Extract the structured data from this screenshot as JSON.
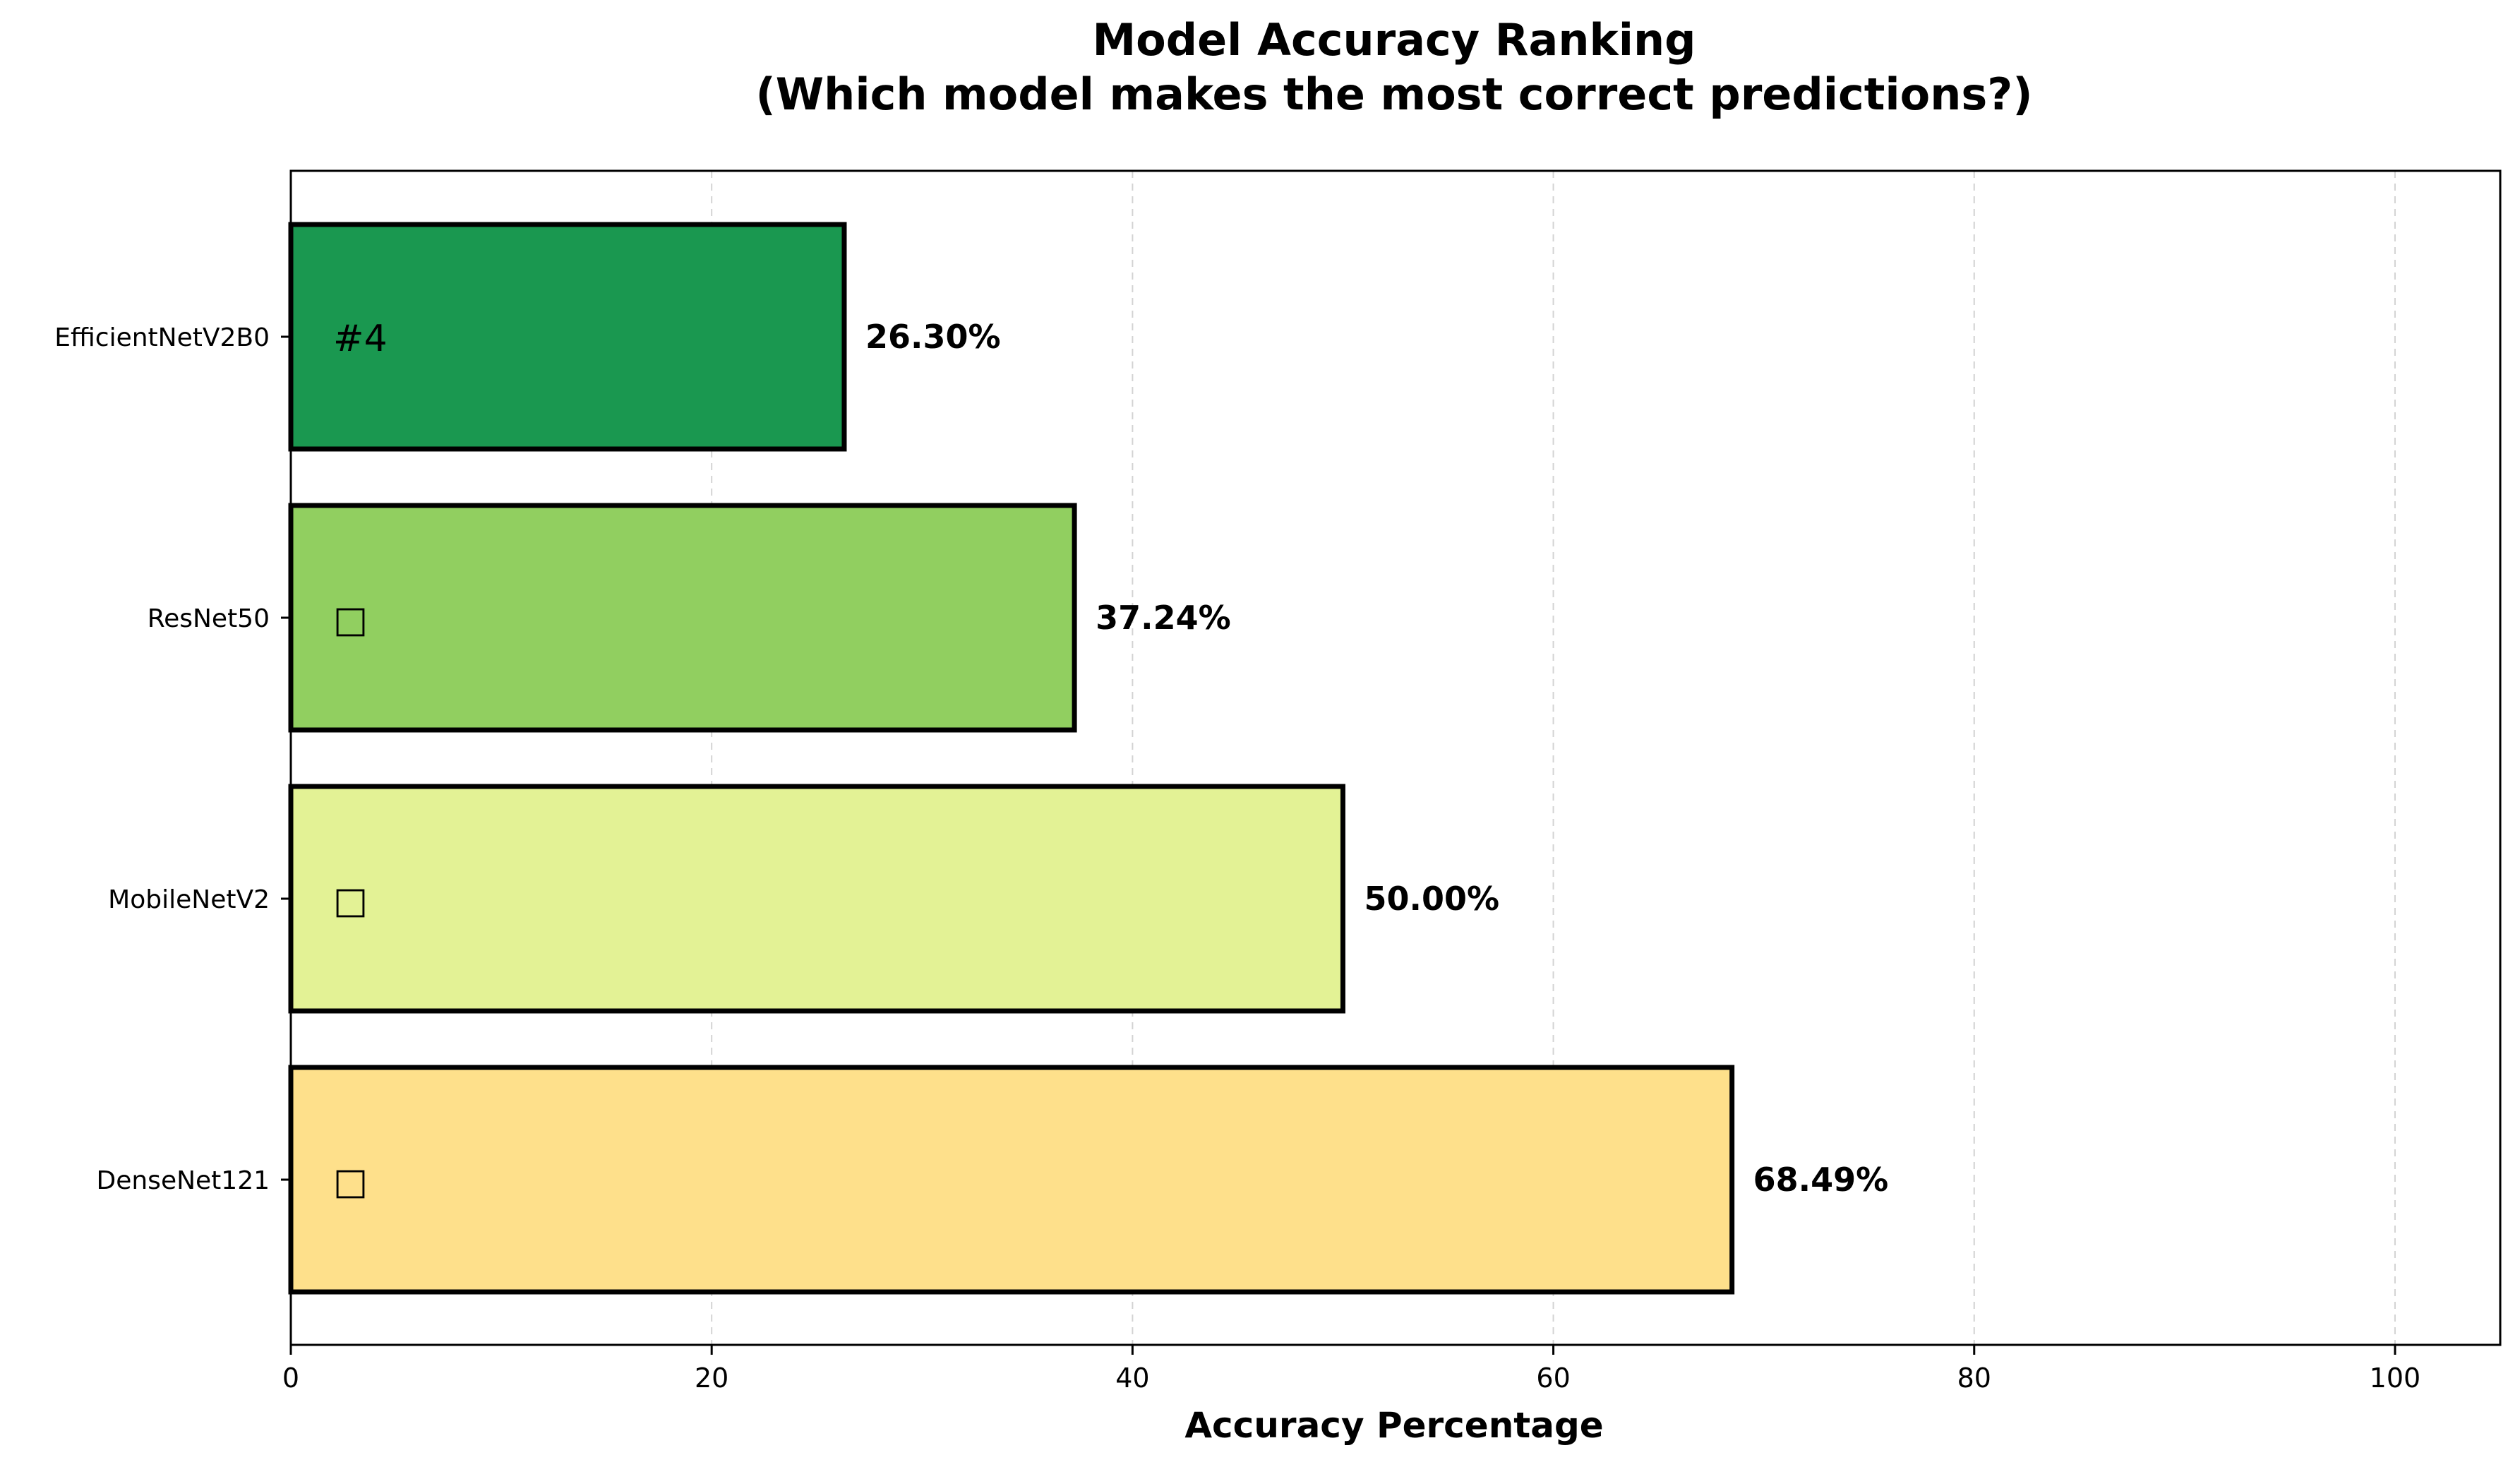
{
  "chart_data": {
    "type": "bar",
    "orientation": "horizontal",
    "title_line1": "Model Accuracy Ranking",
    "title_line2": "(Which model makes the most correct predictions?)",
    "xlabel": "Accuracy Percentage",
    "ylabel": "",
    "xlim": [
      0,
      105
    ],
    "xticks": [
      0,
      20,
      40,
      60,
      80,
      100
    ],
    "grid": "x-dashed",
    "categories": [
      "EfficientNetV2B0",
      "ResNet50",
      "MobileNetV2",
      "DenseNet121"
    ],
    "values": [
      26.3,
      37.24,
      50.0,
      68.49
    ],
    "value_labels": [
      "26.30%",
      "37.24%",
      "50.00%",
      "68.49%"
    ],
    "rank_labels": [
      "#4",
      "□",
      "□",
      "□"
    ],
    "colors": [
      "#1a9850",
      "#91cf60",
      "#e3f295",
      "#fee08b"
    ]
  }
}
